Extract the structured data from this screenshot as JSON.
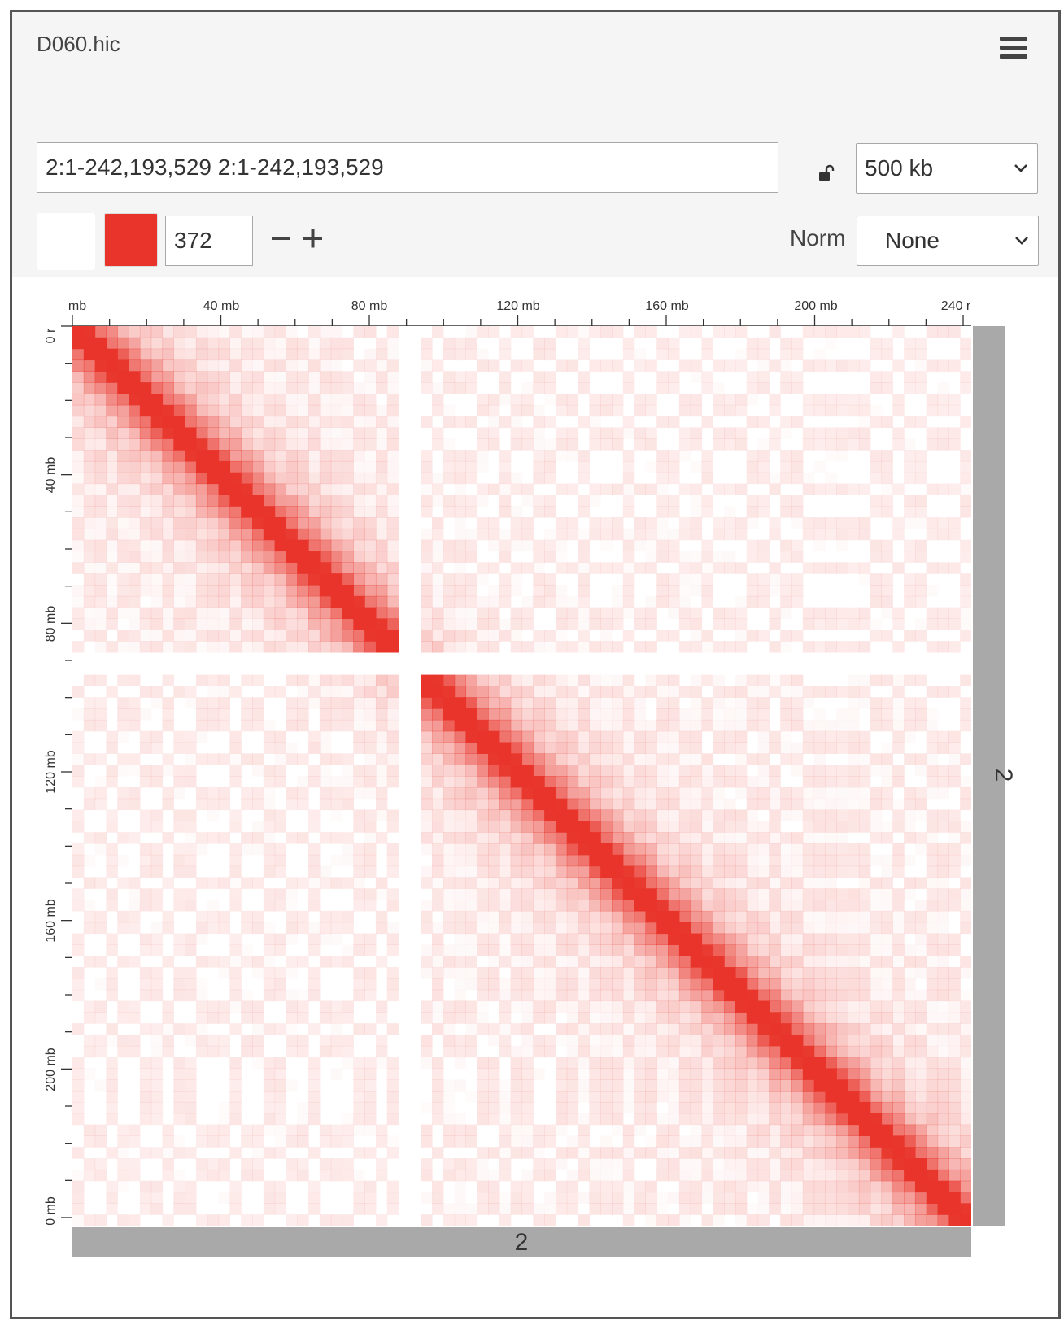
{
  "app": {
    "title": "D060.hic"
  },
  "controls": {
    "locus_value": "2:1-242,193,529 2:1-242,193,529",
    "resolution": {
      "selected": "500 kb"
    },
    "color_scale": {
      "value": "372",
      "low_color": "#ffffff",
      "high_color": "#e8342a"
    },
    "norm": {
      "label": "Norm",
      "selected": "None"
    }
  },
  "icons": {
    "menu": "hamburger-menu-icon",
    "lock": "unlock-icon",
    "minus": "minus-icon",
    "plus": "plus-icon",
    "chevron": "chevron-down-icon"
  },
  "ruler": {
    "top": {
      "labels": [
        "mb",
        "40 mb",
        "80 mb",
        "120 mb",
        "160 mb",
        "200 mb",
        "240 r"
      ]
    },
    "left": {
      "labels": [
        "0 r",
        "40 mb",
        "80 mb",
        "120 mb",
        "160 mb",
        "200 mb",
        "0 mb"
      ]
    },
    "chromosome_label_x": "2",
    "chromosome_label_y": "2"
  },
  "chart_data": {
    "type": "heatmap",
    "title": "",
    "matrix": "chr2 vs chr2 contact map",
    "x_chromosome": "2",
    "y_chromosome": "2",
    "range_mb": [
      0,
      242.19
    ],
    "tick_labels_mb": [
      0,
      40,
      80,
      120,
      160,
      200,
      240
    ],
    "minor_tick_step_mb": 10,
    "color_min": "#ffffff",
    "color_max": "#e8342a",
    "color_scale_max": 372,
    "centromere_gap_mb": [
      87,
      95
    ]
  }
}
